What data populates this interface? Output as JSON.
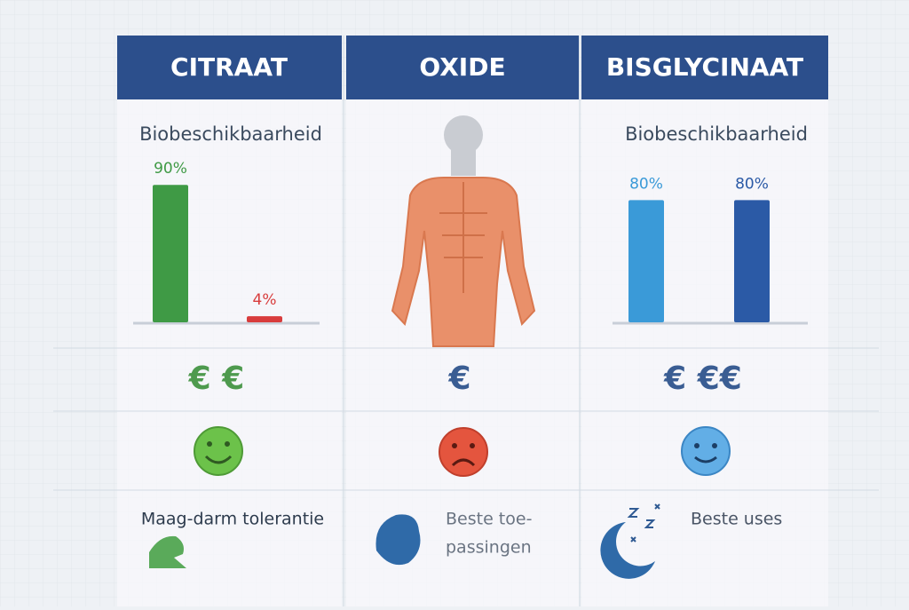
{
  "columns": [
    {
      "header": "CITRAAT",
      "subtitle": "Biobeschikbaarheid",
      "bars": [
        {
          "value": 90,
          "label": "90%",
          "color": "#3f9a45"
        },
        {
          "value": 4,
          "label": "4%",
          "color": "#d83c3c"
        }
      ],
      "price": "€ €",
      "caption": [
        "Maag-darm tolerantie"
      ]
    },
    {
      "header": "OXIDE",
      "price": "€",
      "caption": [
        "Beste toe-",
        "passingen"
      ]
    },
    {
      "header": "BISGLYCINAAT",
      "subtitle": "Biobeschikbaarheid",
      "bars": [
        {
          "value": 80,
          "label": "80%",
          "color": "#3a9ad8"
        },
        {
          "value": 80,
          "label": "80%",
          "color": "#2b5aa6"
        }
      ],
      "price": "€ €€",
      "caption": [
        "Beste uses"
      ]
    }
  ]
}
